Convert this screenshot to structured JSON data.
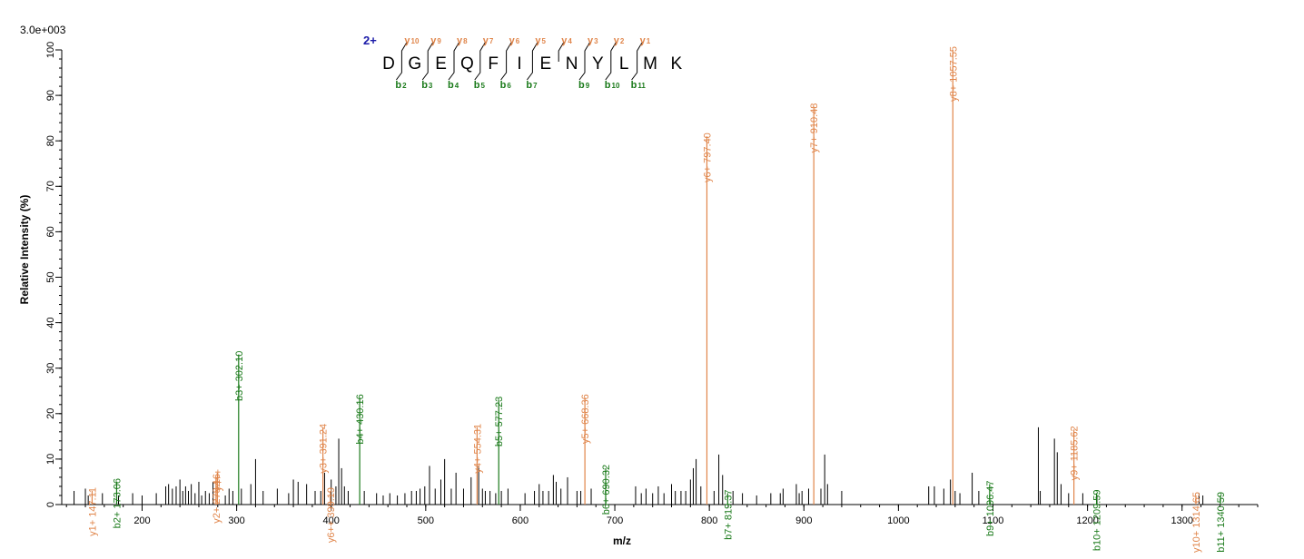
{
  "chart_data": {
    "type": "spectrum",
    "scale_label": "3.0e+003",
    "xlabel": "m/z",
    "ylabel": "Relative   Intensity (%)",
    "xlim": [
      115,
      1380
    ],
    "ylim": [
      0,
      100
    ],
    "x_ticks": [
      200,
      300,
      400,
      500,
      600,
      700,
      800,
      900,
      1000,
      1100,
      1200,
      1300
    ],
    "x_minor_step": 20,
    "y_ticks": [
      0,
      10,
      20,
      30,
      40,
      50,
      60,
      70,
      80,
      90,
      100
    ],
    "y_minor_step": 2,
    "colors": {
      "y_ion": "#e0854a",
      "b_ion": "#1a7a1a",
      "other": "#000000",
      "charge": "#1a1aa8"
    },
    "sequence": {
      "charge": "2+",
      "residues": [
        "D",
        "G",
        "E",
        "Q",
        "F",
        "I",
        "E",
        "N",
        "Y",
        "L",
        "M",
        "K"
      ],
      "y_ions": [
        {
          "after": 1,
          "n": "10"
        },
        {
          "after": 2,
          "n": "9"
        },
        {
          "after": 3,
          "n": "8"
        },
        {
          "after": 4,
          "n": "7"
        },
        {
          "after": 5,
          "n": "6"
        },
        {
          "after": 6,
          "n": "5"
        },
        {
          "after": 7,
          "n": "4"
        },
        {
          "after": 8,
          "n": "3"
        },
        {
          "after": 9,
          "n": "2"
        },
        {
          "after": 10,
          "n": "1"
        }
      ],
      "b_ions": [
        {
          "after": 1,
          "n": "2"
        },
        {
          "after": 2,
          "n": "3"
        },
        {
          "after": 3,
          "n": "4"
        },
        {
          "after": 4,
          "n": "5"
        },
        {
          "after": 5,
          "n": "6"
        },
        {
          "after": 6,
          "n": "7"
        },
        {
          "after": 8,
          "n": "9"
        },
        {
          "after": 9,
          "n": "10"
        },
        {
          "after": 10,
          "n": "11"
        }
      ]
    },
    "labeled_peaks": [
      {
        "mz": 147.11,
        "intensity": 3.0,
        "type": "y",
        "label": "y1+ 147.11"
      },
      {
        "mz": 173.06,
        "intensity": 5.0,
        "type": "b",
        "label": "b2+ 173.06"
      },
      {
        "mz": 278.16,
        "intensity": 6.0,
        "type": "y",
        "label": "y2+ 278.16"
      },
      {
        "mz": 279.6,
        "intensity": 7.0,
        "type": "y",
        "label": "y4++"
      },
      {
        "mz": 302.1,
        "intensity": 33.0,
        "type": "b",
        "label": "b3+ 302.10"
      },
      {
        "mz": 391.24,
        "intensity": 17.0,
        "type": "y",
        "label": "y3+ 391.24"
      },
      {
        "mz": 399.19,
        "intensity": 3.0,
        "type": "y",
        "label": "y6++ 399.19"
      },
      {
        "mz": 430.16,
        "intensity": 23.5,
        "type": "b",
        "label": "b4+ 430.16"
      },
      {
        "mz": 554.31,
        "intensity": 17.0,
        "type": "y",
        "label": "y4+ 554.31"
      },
      {
        "mz": 577.23,
        "intensity": 23.0,
        "type": "b",
        "label": "b5+ 577.23"
      },
      {
        "mz": 668.36,
        "intensity": 23.5,
        "type": "y",
        "label": "y5+ 668.36"
      },
      {
        "mz": 690.32,
        "intensity": 8.0,
        "type": "b",
        "label": "b6+ 690.32"
      },
      {
        "mz": 797.4,
        "intensity": 81.0,
        "type": "y",
        "label": "y6+ 797.40"
      },
      {
        "mz": 819.37,
        "intensity": 2.5,
        "type": "b",
        "label": "b7+ 819.37"
      },
      {
        "mz": 910.48,
        "intensity": 87.5,
        "type": "y",
        "label": "y7+ 910.48"
      },
      {
        "mz": 1057.55,
        "intensity": 100.0,
        "type": "y",
        "label": "y8+ 1057.55"
      },
      {
        "mz": 1096.47,
        "intensity": 4.5,
        "type": "b",
        "label": "b9+ 1096.47"
      },
      {
        "mz": 1185.62,
        "intensity": 16.5,
        "type": "y",
        "label": "y9+ 1185.62"
      },
      {
        "mz": 1209.59,
        "intensity": 2.5,
        "type": "b",
        "label": "b10+ 1209.59"
      },
      {
        "mz": 1314.65,
        "intensity": 2.0,
        "type": "y",
        "label": "y10+ 1314.65"
      },
      {
        "mz": 1340.59,
        "intensity": 2.0,
        "type": "b",
        "label": "b11+ 1340.59"
      }
    ],
    "other_peaks": [
      [
        128,
        3
      ],
      [
        140,
        3.5
      ],
      [
        143,
        2
      ],
      [
        158,
        2.5
      ],
      [
        175,
        2
      ],
      [
        190,
        2.5
      ],
      [
        200,
        2
      ],
      [
        215,
        2.5
      ],
      [
        225,
        4
      ],
      [
        228,
        4.5
      ],
      [
        232,
        3.5
      ],
      [
        236,
        4
      ],
      [
        240,
        5.5
      ],
      [
        243,
        3
      ],
      [
        246,
        4
      ],
      [
        249,
        3
      ],
      [
        252,
        4.5
      ],
      [
        256,
        2.5
      ],
      [
        260,
        5
      ],
      [
        263,
        2
      ],
      [
        267,
        3
      ],
      [
        271,
        2.5
      ],
      [
        275,
        5
      ],
      [
        288,
        2
      ],
      [
        292,
        3.5
      ],
      [
        296,
        3
      ],
      [
        305,
        3.5
      ],
      [
        315,
        4.5
      ],
      [
        320,
        10
      ],
      [
        328,
        3
      ],
      [
        343,
        3.5
      ],
      [
        355,
        2.5
      ],
      [
        360,
        5.5
      ],
      [
        365,
        5
      ],
      [
        374,
        4.5
      ],
      [
        383,
        3
      ],
      [
        389,
        3
      ],
      [
        393,
        7
      ],
      [
        400,
        5.5
      ],
      [
        405,
        4
      ],
      [
        408,
        14.5
      ],
      [
        411,
        8
      ],
      [
        414,
        4
      ],
      [
        418,
        3
      ],
      [
        435,
        3
      ],
      [
        448,
        2.5
      ],
      [
        455,
        2
      ],
      [
        462,
        2.5
      ],
      [
        470,
        2
      ],
      [
        478,
        2.5
      ],
      [
        485,
        3
      ],
      [
        490,
        3
      ],
      [
        494,
        3.5
      ],
      [
        499,
        4
      ],
      [
        504,
        8.5
      ],
      [
        510,
        3.5
      ],
      [
        516,
        5.5
      ],
      [
        520,
        10
      ],
      [
        527,
        3.5
      ],
      [
        532,
        7
      ],
      [
        540,
        3.5
      ],
      [
        548,
        6
      ],
      [
        556,
        8.5
      ],
      [
        560,
        3.5
      ],
      [
        563,
        3
      ],
      [
        568,
        3
      ],
      [
        574,
        2.5
      ],
      [
        580,
        3
      ],
      [
        587,
        3.5
      ],
      [
        605,
        2.5
      ],
      [
        615,
        3
      ],
      [
        620,
        4.5
      ],
      [
        624,
        3
      ],
      [
        630,
        3
      ],
      [
        635,
        6.5
      ],
      [
        638,
        5
      ],
      [
        643,
        3.5
      ],
      [
        650,
        6
      ],
      [
        660,
        3
      ],
      [
        664,
        3
      ],
      [
        675,
        3.5
      ],
      [
        722,
        4
      ],
      [
        728,
        2.5
      ],
      [
        733,
        3.5
      ],
      [
        740,
        2.5
      ],
      [
        746,
        4
      ],
      [
        752,
        2.5
      ],
      [
        760,
        4.5
      ],
      [
        764,
        3
      ],
      [
        770,
        3
      ],
      [
        775,
        3
      ],
      [
        780,
        5.5
      ],
      [
        783,
        8
      ],
      [
        786,
        10
      ],
      [
        791,
        4
      ],
      [
        805,
        3
      ],
      [
        810,
        11
      ],
      [
        814,
        6.5
      ],
      [
        825,
        3
      ],
      [
        835,
        2.5
      ],
      [
        850,
        2
      ],
      [
        865,
        2.5
      ],
      [
        875,
        2.5
      ],
      [
        878,
        3.5
      ],
      [
        892,
        4.5
      ],
      [
        895,
        2.5
      ],
      [
        898,
        3
      ],
      [
        905,
        3.5
      ],
      [
        918,
        3.5
      ],
      [
        922,
        11
      ],
      [
        925,
        4.5
      ],
      [
        940,
        3
      ],
      [
        1032,
        4
      ],
      [
        1038,
        4
      ],
      [
        1048,
        3.5
      ],
      [
        1055,
        5.5
      ],
      [
        1060,
        3
      ],
      [
        1065,
        2.5
      ],
      [
        1078,
        7
      ],
      [
        1085,
        3
      ],
      [
        1148,
        17
      ],
      [
        1150,
        3
      ],
      [
        1165,
        14.5
      ],
      [
        1168,
        11.5
      ],
      [
        1172,
        4.5
      ],
      [
        1180,
        2.5
      ],
      [
        1195,
        2.5
      ],
      [
        1210,
        2
      ],
      [
        1318,
        2.5
      ],
      [
        1322,
        2
      ]
    ]
  }
}
